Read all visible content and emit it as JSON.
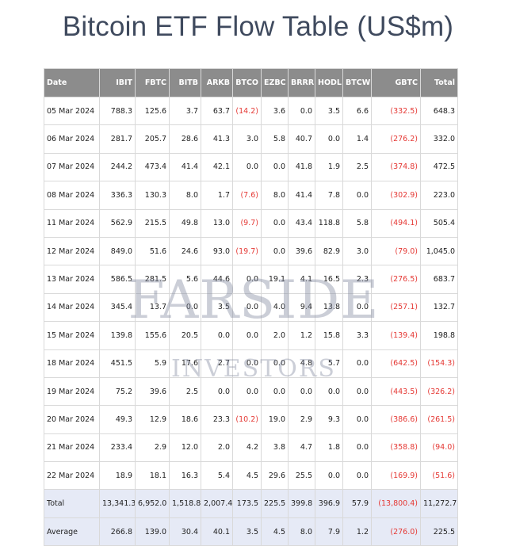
{
  "page": {
    "title": "Bitcoin ETF Flow Table (US$m)"
  },
  "watermark": {
    "line1": "FARSIDE",
    "line2": "INVESTORS"
  },
  "table": {
    "headers": [
      "Date",
      "IBIT",
      "FBTC",
      "BITB",
      "ARKB",
      "BTCO",
      "EZBC",
      "BRRR",
      "HODL",
      "BTCW",
      "GBTC",
      "Total"
    ],
    "rows": [
      [
        "05 Mar 2024",
        "788.3",
        "125.6",
        "3.7",
        "63.7",
        "(14.2)",
        "3.6",
        "0.0",
        "3.5",
        "6.6",
        "(332.5)",
        "648.3"
      ],
      [
        "06 Mar 2024",
        "281.7",
        "205.7",
        "28.6",
        "41.3",
        "3.0",
        "5.8",
        "40.7",
        "0.0",
        "1.4",
        "(276.2)",
        "332.0"
      ],
      [
        "07 Mar 2024",
        "244.2",
        "473.4",
        "41.4",
        "42.1",
        "0.0",
        "0.0",
        "41.8",
        "1.9",
        "2.5",
        "(374.8)",
        "472.5"
      ],
      [
        "08 Mar 2024",
        "336.3",
        "130.3",
        "8.0",
        "1.7",
        "(7.6)",
        "8.0",
        "41.4",
        "7.8",
        "0.0",
        "(302.9)",
        "223.0"
      ],
      [
        "11 Mar 2024",
        "562.9",
        "215.5",
        "49.8",
        "13.0",
        "(9.7)",
        "0.0",
        "43.4",
        "118.8",
        "5.8",
        "(494.1)",
        "505.4"
      ],
      [
        "12 Mar 2024",
        "849.0",
        "51.6",
        "24.6",
        "93.0",
        "(19.7)",
        "0.0",
        "39.6",
        "82.9",
        "3.0",
        "(79.0)",
        "1,045.0"
      ],
      [
        "13 Mar 2024",
        "586.5",
        "281.5",
        "5.6",
        "44.6",
        "0.0",
        "19.1",
        "4.1",
        "16.5",
        "2.3",
        "(276.5)",
        "683.7"
      ],
      [
        "14 Mar 2024",
        "345.4",
        "13.7",
        "0.0",
        "3.5",
        "0.0",
        "4.0",
        "9.4",
        "13.8",
        "0.0",
        "(257.1)",
        "132.7"
      ],
      [
        "15 Mar 2024",
        "139.8",
        "155.6",
        "20.5",
        "0.0",
        "0.0",
        "2.0",
        "1.2",
        "15.8",
        "3.3",
        "(139.4)",
        "198.8"
      ],
      [
        "18 Mar 2024",
        "451.5",
        "5.9",
        "17.6",
        "2.7",
        "0.0",
        "0.0",
        "4.8",
        "5.7",
        "0.0",
        "(642.5)",
        "(154.3)"
      ],
      [
        "19 Mar 2024",
        "75.2",
        "39.6",
        "2.5",
        "0.0",
        "0.0",
        "0.0",
        "0.0",
        "0.0",
        "0.0",
        "(443.5)",
        "(326.2)"
      ],
      [
        "20 Mar 2024",
        "49.3",
        "12.9",
        "18.6",
        "23.3",
        "(10.2)",
        "19.0",
        "2.9",
        "9.3",
        "0.0",
        "(386.6)",
        "(261.5)"
      ],
      [
        "21 Mar 2024",
        "233.4",
        "2.9",
        "12.0",
        "2.0",
        "4.2",
        "3.8",
        "4.7",
        "1.8",
        "0.0",
        "(358.8)",
        "(94.0)"
      ],
      [
        "22 Mar 2024",
        "18.9",
        "18.1",
        "16.3",
        "5.4",
        "4.5",
        "29.6",
        "25.5",
        "0.0",
        "0.0",
        "(169.9)",
        "(51.6)"
      ]
    ],
    "summary": [
      [
        "Total",
        "13,341.3",
        "6,952.0",
        "1,518.8",
        "2,007.4",
        "173.5",
        "225.5",
        "399.8",
        "396.9",
        "57.9",
        "(13,800.4)",
        "11,272.7"
      ],
      [
        "Average",
        "266.8",
        "139.0",
        "30.4",
        "40.1",
        "3.5",
        "4.5",
        "8.0",
        "7.9",
        "1.2",
        "(276.0)",
        "225.5"
      ]
    ]
  },
  "colors": {
    "header_bg": "#8c8c8c",
    "negative": "#e53935",
    "summary_bg": "#e6eaf6"
  }
}
